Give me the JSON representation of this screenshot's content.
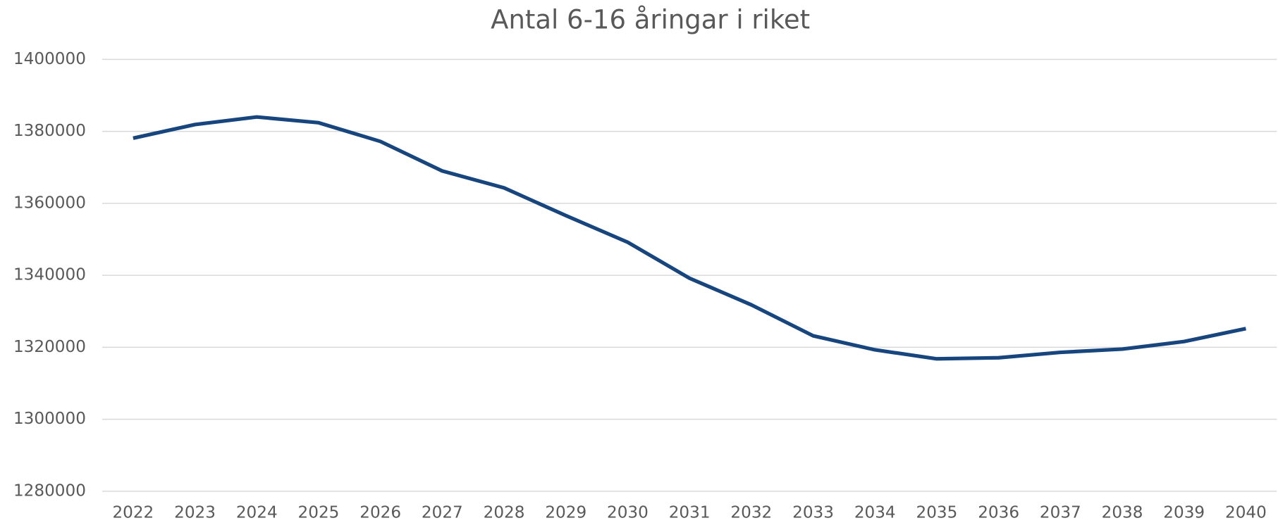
{
  "chart_data": {
    "type": "line",
    "title": "Antal 6-16 åringar i riket",
    "categories": [
      "2022",
      "2023",
      "2024",
      "2025",
      "2026",
      "2027",
      "2028",
      "2029",
      "2030",
      "2031",
      "2032",
      "2033",
      "2034",
      "2035",
      "2036",
      "2037",
      "2038",
      "2039",
      "2040"
    ],
    "series": [
      {
        "name": "Antal 6-16 åringar",
        "color": "#17457e",
        "values": [
          1378100,
          1381900,
          1384000,
          1382400,
          1377200,
          1369000,
          1364300,
          1356600,
          1349200,
          1339200,
          1331800,
          1323200,
          1319300,
          1316800,
          1317100,
          1318600,
          1319500,
          1321600,
          1325200
        ]
      }
    ],
    "ylim": [
      1280000,
      1400000
    ],
    "yticks": [
      1280000,
      1300000,
      1320000,
      1340000,
      1360000,
      1380000,
      1400000
    ],
    "grid": true
  }
}
